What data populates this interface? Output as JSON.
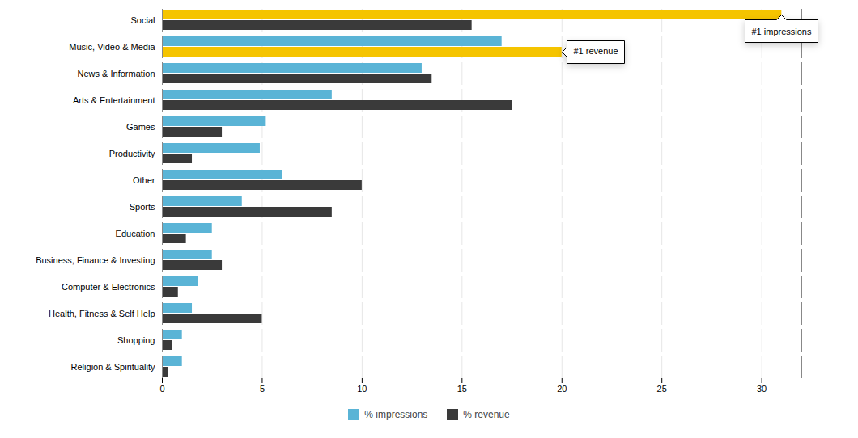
{
  "chart_data": {
    "type": "bar",
    "orientation": "horizontal",
    "categories": [
      "Social",
      "Music, Video & Media",
      "News & Information",
      "Arts & Entertainment",
      "Games",
      "Productivity",
      "Other",
      "Sports",
      "Education",
      "Business, Finance & Investing",
      "Computer & Electronics",
      "Health, Fitness & Self Help",
      "Shopping",
      "Religion & Spirituality"
    ],
    "series": [
      {
        "name": "% impressions",
        "color": "#5ab4d6",
        "colors": [
          "#f5c400",
          "#5ab4d6",
          "#5ab4d6",
          "#5ab4d6",
          "#5ab4d6",
          "#5ab4d6",
          "#5ab4d6",
          "#5ab4d6",
          "#5ab4d6",
          "#5ab4d6",
          "#5ab4d6",
          "#5ab4d6",
          "#5ab4d6",
          "#5ab4d6"
        ],
        "values": [
          31,
          17,
          13,
          8.5,
          5.2,
          4.9,
          6.0,
          4.0,
          2.5,
          2.5,
          1.8,
          1.5,
          1.0,
          1.0
        ]
      },
      {
        "name": "% revenue",
        "color": "#3a3a3a",
        "colors": [
          "#3a3a3a",
          "#f5c400",
          "#3a3a3a",
          "#3a3a3a",
          "#3a3a3a",
          "#3a3a3a",
          "#3a3a3a",
          "#3a3a3a",
          "#3a3a3a",
          "#3a3a3a",
          "#3a3a3a",
          "#3a3a3a",
          "#3a3a3a",
          "#3a3a3a"
        ],
        "values": [
          15.5,
          20,
          13.5,
          17.5,
          3.0,
          1.5,
          10,
          8.5,
          1.2,
          3.0,
          0.8,
          5.0,
          0.5,
          0.3
        ]
      }
    ],
    "annotations": [
      {
        "text": "#1 impressions",
        "category": "Social",
        "series": "% impressions"
      },
      {
        "text": "#1 revenue",
        "category": "Music, Video & Media",
        "series": "% revenue"
      }
    ],
    "xlim": [
      0,
      32
    ],
    "xticks": [
      0,
      5,
      10,
      15,
      20,
      25,
      30
    ],
    "grid": true,
    "legend": "bottom"
  }
}
